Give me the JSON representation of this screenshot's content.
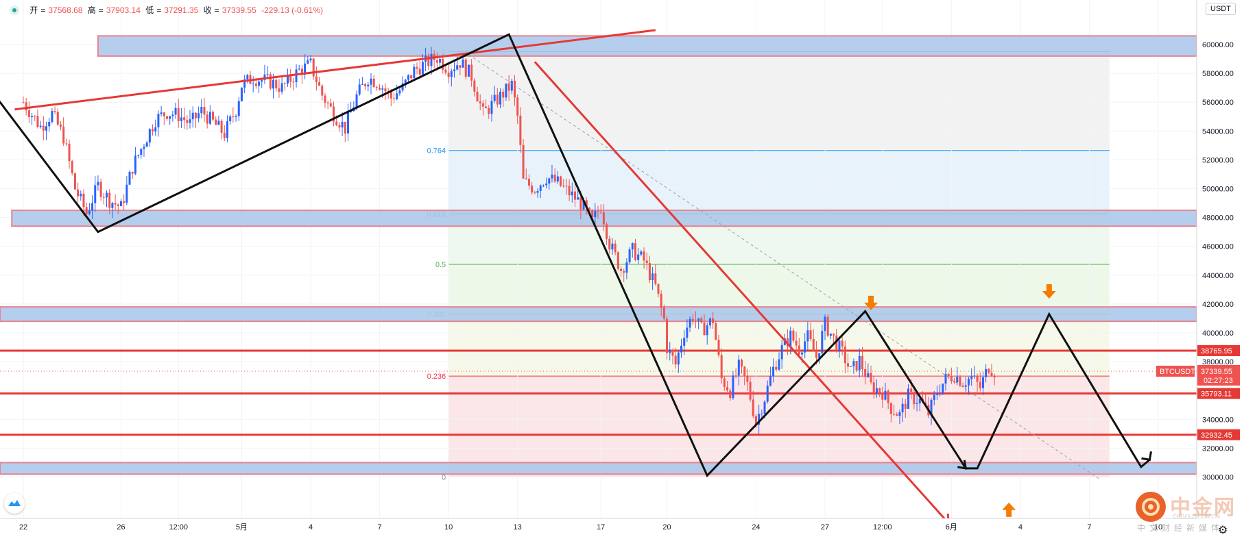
{
  "header": {
    "open_label": "开",
    "open": "37568.68",
    "high_label": "高",
    "high": "37903.14",
    "low_label": "低",
    "low": "37291.35",
    "close_label": "收",
    "close": "37339.55",
    "change": "-229.13 (-0.61%)"
  },
  "currency": "USDT",
  "watermark": {
    "brand": "中金网",
    "site": "CNGOLD.COM.CN",
    "sub": "中文财经新媒体"
  },
  "gear_icon": "gear-icon",
  "colors": {
    "up": "#2962ff",
    "down": "#ef5350",
    "zone_fill": "#a9c5ea",
    "zone_border": "#e7838e",
    "level_line": "#e53935",
    "price_tag": "#e53935",
    "arrow": "#f57c00"
  },
  "chart_data": {
    "type": "candlestick",
    "symbol": "BTCUSDT",
    "y_axis": {
      "min": 29000,
      "max": 61000,
      "ticks": [
        "30000.00",
        "32000.00",
        "34000.00",
        "36000.00",
        "38000.00",
        "40000.00",
        "42000.00",
        "44000.00",
        "46000.00",
        "48000.00",
        "50000.00",
        "52000.00",
        "54000.00",
        "56000.00",
        "58000.00",
        "60000.00"
      ]
    },
    "x_axis": {
      "labels": [
        "22",
        "26",
        "12:00",
        "5月",
        "4",
        "7",
        "10",
        "13",
        "17",
        "20",
        "24",
        "27",
        "12:00",
        "6月",
        "4",
        "7",
        "10"
      ],
      "label_bar_index": [
        0,
        34,
        54,
        76,
        100,
        124,
        148,
        172,
        201,
        224,
        255,
        279,
        299,
        323,
        347,
        371,
        395
      ]
    },
    "last_bar_index": 338,
    "close_path": [
      [
        0,
        56000
      ],
      [
        6,
        54300
      ],
      [
        10,
        55200
      ],
      [
        14,
        53600
      ],
      [
        18,
        50000
      ],
      [
        22,
        48300
      ],
      [
        26,
        50200
      ],
      [
        30,
        49200
      ],
      [
        34,
        48700
      ],
      [
        38,
        51500
      ],
      [
        42,
        53200
      ],
      [
        46,
        54800
      ],
      [
        50,
        55300
      ],
      [
        54,
        55100
      ],
      [
        58,
        54500
      ],
      [
        62,
        55400
      ],
      [
        66,
        54600
      ],
      [
        70,
        53800
      ],
      [
        74,
        55500
      ],
      [
        76,
        57200
      ],
      [
        80,
        57700
      ],
      [
        86,
        57400
      ],
      [
        90,
        57000
      ],
      [
        96,
        58200
      ],
      [
        100,
        58600
      ],
      [
        104,
        56500
      ],
      [
        108,
        55200
      ],
      [
        112,
        54200
      ],
      [
        116,
        56400
      ],
      [
        120,
        57700
      ],
      [
        124,
        57300
      ],
      [
        128,
        56300
      ],
      [
        132,
        57000
      ],
      [
        136,
        58200
      ],
      [
        140,
        58700
      ],
      [
        144,
        59100
      ],
      [
        148,
        58300
      ],
      [
        152,
        58800
      ],
      [
        156,
        57800
      ],
      [
        160,
        55200
      ],
      [
        164,
        56000
      ],
      [
        168,
        56800
      ],
      [
        170,
        57200
      ],
      [
        172,
        55000
      ],
      [
        174,
        50500
      ],
      [
        178,
        50000
      ],
      [
        182,
        50800
      ],
      [
        186,
        50400
      ],
      [
        190,
        49700
      ],
      [
        194,
        49000
      ],
      [
        198,
        47700
      ],
      [
        201,
        48800
      ],
      [
        204,
        46200
      ],
      [
        208,
        44400
      ],
      [
        212,
        45700
      ],
      [
        216,
        45000
      ],
      [
        220,
        43200
      ],
      [
        223,
        40900
      ],
      [
        224,
        39000
      ],
      [
        227,
        37800
      ],
      [
        230,
        40100
      ],
      [
        233,
        41200
      ],
      [
        236,
        40200
      ],
      [
        240,
        40900
      ],
      [
        243,
        36800
      ],
      [
        246,
        36000
      ],
      [
        249,
        37600
      ],
      [
        252,
        36400
      ],
      [
        255,
        33800
      ],
      [
        258,
        35500
      ],
      [
        261,
        37500
      ],
      [
        264,
        38900
      ],
      [
        267,
        39800
      ],
      [
        270,
        38900
      ],
      [
        273,
        39700
      ],
      [
        276,
        38300
      ],
      [
        279,
        40600
      ],
      [
        282,
        39600
      ],
      [
        285,
        38600
      ],
      [
        288,
        37300
      ],
      [
        291,
        38100
      ],
      [
        295,
        36300
      ],
      [
        299,
        35900
      ],
      [
        302,
        34800
      ],
      [
        305,
        34300
      ],
      [
        308,
        35600
      ],
      [
        312,
        35300
      ],
      [
        315,
        34400
      ],
      [
        318,
        35900
      ],
      [
        321,
        36800
      ],
      [
        324,
        37100
      ],
      [
        327,
        36600
      ],
      [
        330,
        36900
      ],
      [
        333,
        36200
      ],
      [
        336,
        37700
      ],
      [
        338,
        37340
      ]
    ],
    "zones": [
      {
        "from_bar": 26,
        "low": 59200,
        "high": 60600
      },
      {
        "from_bar": -4,
        "low": 47400,
        "high": 48500
      },
      {
        "from_bar": -12,
        "low": 40800,
        "high": 41800
      },
      {
        "from_bar": -12,
        "low": 30200,
        "high": 31000
      }
    ],
    "horizontal_levels": [
      {
        "value": 38765.95,
        "label": "38765.95"
      },
      {
        "value": 35793.11,
        "label": "35793.11"
      },
      {
        "value": 32932.45,
        "label": "32932.45"
      }
    ],
    "last_price": {
      "symbol": "BTCUSDT",
      "value": "37339.55",
      "countdown": "02:27:23"
    },
    "fibonacci": {
      "from_bar": 148,
      "to_bar": 378,
      "high": 59500,
      "low": 30000,
      "levels": [
        {
          "ratio": "1",
          "value": 59500,
          "color": "#787b86"
        },
        {
          "ratio": "0.764",
          "value": 52650,
          "color": "#2196f3"
        },
        {
          "ratio": "0.618",
          "value": 48250,
          "color": "#4caf50"
        },
        {
          "ratio": "0.5",
          "value": 44750,
          "color": "#4caf50"
        },
        {
          "ratio": "0.382",
          "value": 41300,
          "color": "#8bc34a"
        },
        {
          "ratio": "0.236",
          "value": 37000,
          "color": "#f23645"
        },
        {
          "ratio": "0",
          "value": 30000,
          "color": "#787b86"
        }
      ]
    },
    "black_wave": [
      [
        -10,
        56500
      ],
      [
        26,
        47000
      ],
      [
        169,
        60700
      ],
      [
        238,
        30100
      ],
      [
        293,
        41500
      ],
      [
        328,
        30600
      ],
      [
        332,
        30600
      ],
      [
        357,
        41300
      ],
      [
        389,
        30700
      ],
      [
        392,
        31200
      ]
    ],
    "red_trendline": [
      [
        -3,
        55500
      ],
      [
        220,
        61000
      ]
    ],
    "red_down_line": [
      [
        178,
        58800
      ],
      [
        322,
        26800
      ]
    ],
    "dashed_line": [
      [
        155,
        59300
      ],
      [
        375,
        29800
      ]
    ],
    "orange_arrows": [
      {
        "bar": 295,
        "value": 42000,
        "dir": "down"
      },
      {
        "bar": 357,
        "value": 42800,
        "dir": "down"
      },
      {
        "bar": 343,
        "value": 27800,
        "dir": "up"
      }
    ]
  }
}
